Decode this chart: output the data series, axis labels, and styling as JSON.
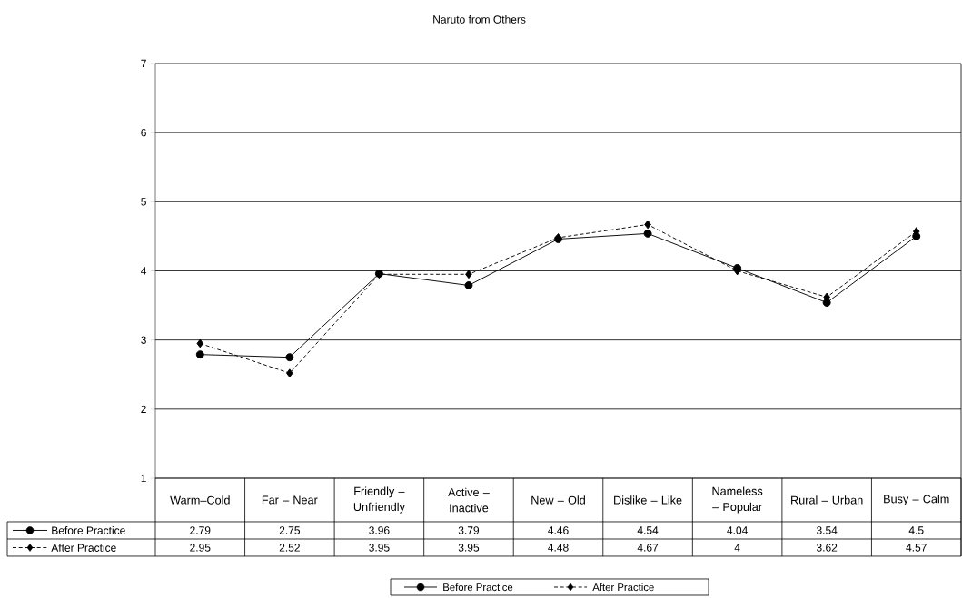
{
  "chart_data": {
    "type": "line",
    "title": "Naruto from Others",
    "categories": [
      "Warm–Cold",
      "Far – Near",
      "Friendly – Unfriendly",
      "Active – Inactive",
      "New – Old",
      "Dislike – Like",
      "Nameless – Popular",
      "Rural – Urban",
      "Busy – Calm"
    ],
    "series": [
      {
        "name": "Before Practice",
        "color": "#000000",
        "marker": "circle",
        "line_style": "solid",
        "values": [
          2.79,
          2.75,
          3.96,
          3.79,
          4.46,
          4.54,
          4.04,
          3.54,
          4.5
        ]
      },
      {
        "name": "After Practice",
        "color": "#000000",
        "marker": "diamond",
        "line_style": "dashed",
        "values": [
          2.95,
          2.52,
          3.95,
          3.95,
          4.48,
          4.67,
          4,
          3.62,
          4.57
        ]
      }
    ],
    "ylim": [
      1,
      7
    ],
    "yticks": [
      1,
      2,
      3,
      4,
      5,
      6,
      7
    ],
    "grid": "y",
    "legend": "bottom",
    "data_labels": true
  }
}
